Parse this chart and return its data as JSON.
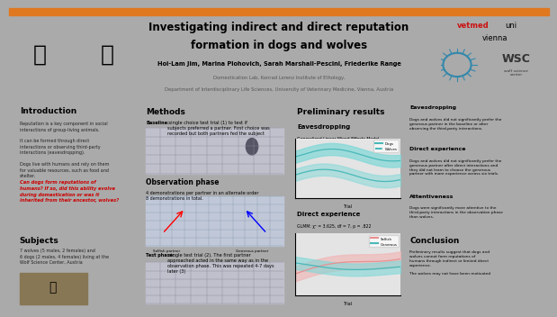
{
  "title_line1": "Investigating indirect and direct reputation",
  "title_line2": "formation in dogs and wolves",
  "authors": "Hoi-Lam Jim, Marina Plohovich, Sarah Marshall-Pescini, Friederike Range",
  "affiliation1": "Domestication Lab, Konrad Lorenz Institute of Ethology,",
  "affiliation2": "Department of Interdisciplinary Life Sciences, University of Veterinary Medicine, Vienna, Austria",
  "intro_title": "Introduction",
  "intro_body": "Reputation is a key component in social\ninteractions of group-living animals.\n\nIt can be formed through direct\ninteractions or observing third-party\ninteractions (eavesdropping).\n\nDogs live with humans and rely on them\nfor valuable resources, such as food and\nshelter.",
  "intro_question": "Can dogs form reputations of\nhumans? If so, did this ability evolve\nduring domestication or was it\ninherited from their ancestor, wolves?",
  "subjects_title": "Subjects",
  "subjects_body": "7 wolves (5 males, 2 females) and\n6 dogs (2 males, 4 females) living at the\nWolf Science Center, Austria",
  "methods_title": "Methods",
  "methods_baseline_bold": "Baseline:",
  "methods_baseline_rest": " single choice test trial (1) to test if\nsubjects preferred a partner. First choice was\nrecorded but both partners fed the subject",
  "methods_obs_title": "Observation phase",
  "methods_obs_body": "4 demonstrations per partner in an alternate order\n8 demonstrations in total.",
  "methods_labels": [
    "Selfish partner",
    "Generous partner"
  ],
  "methods_test_bold": "Test phase:",
  "methods_test_rest": " single test trial (2). The first partner\napproached acted in the same way as in the\nobservation phase. This was repeated 4-7 days\nlater (3)",
  "results_title": "Preliminary results",
  "eaves_title": "Eavesdropping",
  "eaves_stat": "Generalized Linear Mixed-Effects Model\n(GLMM): χ² = 5.225, df = 6, p = .515",
  "direct_title": "Direct experience",
  "direct_stat": "GLMM: χ² = 3.625, df = 7, p = .822",
  "right_eaves_title": "Eavesdropping",
  "right_eaves_body": "Dogs and wolves did not significantly prefer the\ngenerous partner in the baseline or after\nobserving the third-party interactions.",
  "right_direct_title": "Direct experience",
  "right_direct_body": "Dogs and wolves did not significantly prefer the\ngenerous partner after direct interactions and\nthey did not learn to choose the generous\npartner with more experience across six trials.",
  "right_atten_title": "Attentiveness",
  "right_atten_body": "Dogs were significantly more attentive to the\nthird-party interactions in the observation phase\nthan wolves.",
  "conclusion_title": "Conclusion",
  "conclusion_body": "Preliminary results suggest that dogs and\nwolves cannot form reputations of\nhumans through indirect or limited direct\nexperience.\n\nThe wolves may not have been motivated",
  "header_bg": "#ffffff",
  "body_bg": "#aaaaaa",
  "panel_bg": "#d2d2d2",
  "conclusion_bg": "#eea0a0",
  "orange_bar": "#e07820",
  "question_color": "#cc0000",
  "teal": "#4ab8b8",
  "teal_light": "#80d8d8",
  "pink": "#e89090",
  "pink_light": "#f0b8b8",
  "photo1_color": "#7090a8",
  "photo2_color": "#806030"
}
